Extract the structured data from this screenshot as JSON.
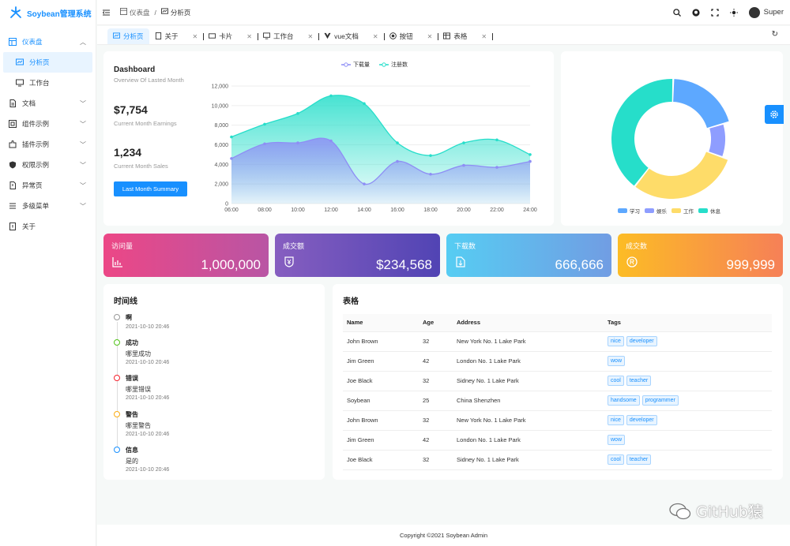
{
  "app": {
    "name": "Soybean管理系统"
  },
  "sidebar": {
    "items": [
      {
        "label": "仪表盘"
      },
      {
        "label": "分析页"
      },
      {
        "label": "工作台"
      },
      {
        "label": "文档"
      },
      {
        "label": "组件示例"
      },
      {
        "label": "插件示例"
      },
      {
        "label": "权限示例"
      },
      {
        "label": "异常页"
      },
      {
        "label": "多级菜单"
      },
      {
        "label": "关于"
      }
    ]
  },
  "header": {
    "breadcrumb": [
      "仪表盘",
      "分析页"
    ],
    "separator": "/",
    "user": "Super"
  },
  "tabs": [
    {
      "label": "分析页"
    },
    {
      "label": "关于"
    },
    {
      "label": "卡片"
    },
    {
      "label": "工作台"
    },
    {
      "label": "vue文档"
    },
    {
      "label": "按钮"
    },
    {
      "label": "表格"
    }
  ],
  "dashboard": {
    "title": "Dashboard",
    "subtitle": "Overview Of Lasted Month",
    "earnings": "$7,754",
    "earnings_label": "Current Month Earnings",
    "sales": "1,234",
    "sales_label": "Current Month Sales",
    "button": "Last Month Summary"
  },
  "chart_data": [
    {
      "type": "area",
      "x": [
        "06:00",
        "08:00",
        "10:00",
        "12:00",
        "14:00",
        "16:00",
        "18:00",
        "20:00",
        "22:00",
        "24:00"
      ],
      "series": [
        {
          "name": "下载量",
          "values": [
            4600,
            6100,
            6200,
            6400,
            2000,
            4300,
            3000,
            3900,
            3700,
            4300
          ],
          "color": "#8e8ef5"
        },
        {
          "name": "注册数",
          "values": [
            6800,
            8100,
            9200,
            11000,
            10200,
            6200,
            4900,
            6200,
            6500,
            5000
          ],
          "color": "#26deca"
        }
      ],
      "yticks": [
        "0",
        "2,000",
        "4,000",
        "6,000",
        "8,000",
        "10,000",
        "12,000"
      ],
      "ylim": [
        0,
        12000
      ],
      "legend": "top"
    },
    {
      "type": "pie",
      "categories": [
        "学习",
        "娱乐",
        "工作",
        "休息"
      ],
      "values": [
        20,
        10,
        30,
        40
      ],
      "colors": [
        "#5da8ff",
        "#8e9dff",
        "#fedc69",
        "#26deca"
      ]
    }
  ],
  "stats": [
    {
      "title": "访问量",
      "value": "1,000,000",
      "icon": "bar-chart-icon"
    },
    {
      "title": "成交额",
      "value": "$234,568",
      "icon": "yen-shield-icon"
    },
    {
      "title": "下载数",
      "value": "666,666",
      "icon": "download-file-icon"
    },
    {
      "title": "成交数",
      "value": "999,999",
      "icon": "registered-icon"
    }
  ],
  "timeline": {
    "title": "时间线",
    "items": [
      {
        "title": "啊",
        "desc": "",
        "time": "2021-10-10 20:46",
        "color": "#999999"
      },
      {
        "title": "成功",
        "desc": "哪里成功",
        "time": "2021-10-10 20:46",
        "color": "#52c41a"
      },
      {
        "title": "错误",
        "desc": "哪里错误",
        "time": "2021-10-10 20:46",
        "color": "#f5222d"
      },
      {
        "title": "警告",
        "desc": "哪里警告",
        "time": "2021-10-10 20:46",
        "color": "#faad14"
      },
      {
        "title": "信息",
        "desc": "是的",
        "time": "2021-10-10 20:46",
        "color": "#1890ff"
      }
    ]
  },
  "table": {
    "title": "表格",
    "columns": [
      "Name",
      "Age",
      "Address",
      "Tags"
    ],
    "rows": [
      {
        "name": "John Brown",
        "age": "32",
        "address": "New York No. 1 Lake Park",
        "tags": [
          "nice",
          "developer"
        ]
      },
      {
        "name": "Jim Green",
        "age": "42",
        "address": "London No. 1 Lake Park",
        "tags": [
          "wow"
        ]
      },
      {
        "name": "Joe Black",
        "age": "32",
        "address": "Sidney No. 1 Lake Park",
        "tags": [
          "cool",
          "teacher"
        ]
      },
      {
        "name": "Soybean",
        "age": "25",
        "address": "China Shenzhen",
        "tags": [
          "handsome",
          "programmer"
        ]
      },
      {
        "name": "John Brown",
        "age": "32",
        "address": "New York No. 1 Lake Park",
        "tags": [
          "nice",
          "developer"
        ]
      },
      {
        "name": "Jim Green",
        "age": "42",
        "address": "London No. 1 Lake Park",
        "tags": [
          "wow"
        ]
      },
      {
        "name": "Joe Black",
        "age": "32",
        "address": "Sidney No. 1 Lake Park",
        "tags": [
          "cool",
          "teacher"
        ]
      }
    ]
  },
  "footer": {
    "text": "Copyright ©2021 Soybean Admin"
  },
  "watermark": {
    "text": "GitHub猿"
  },
  "colors": {
    "primary": "#1890ff"
  }
}
